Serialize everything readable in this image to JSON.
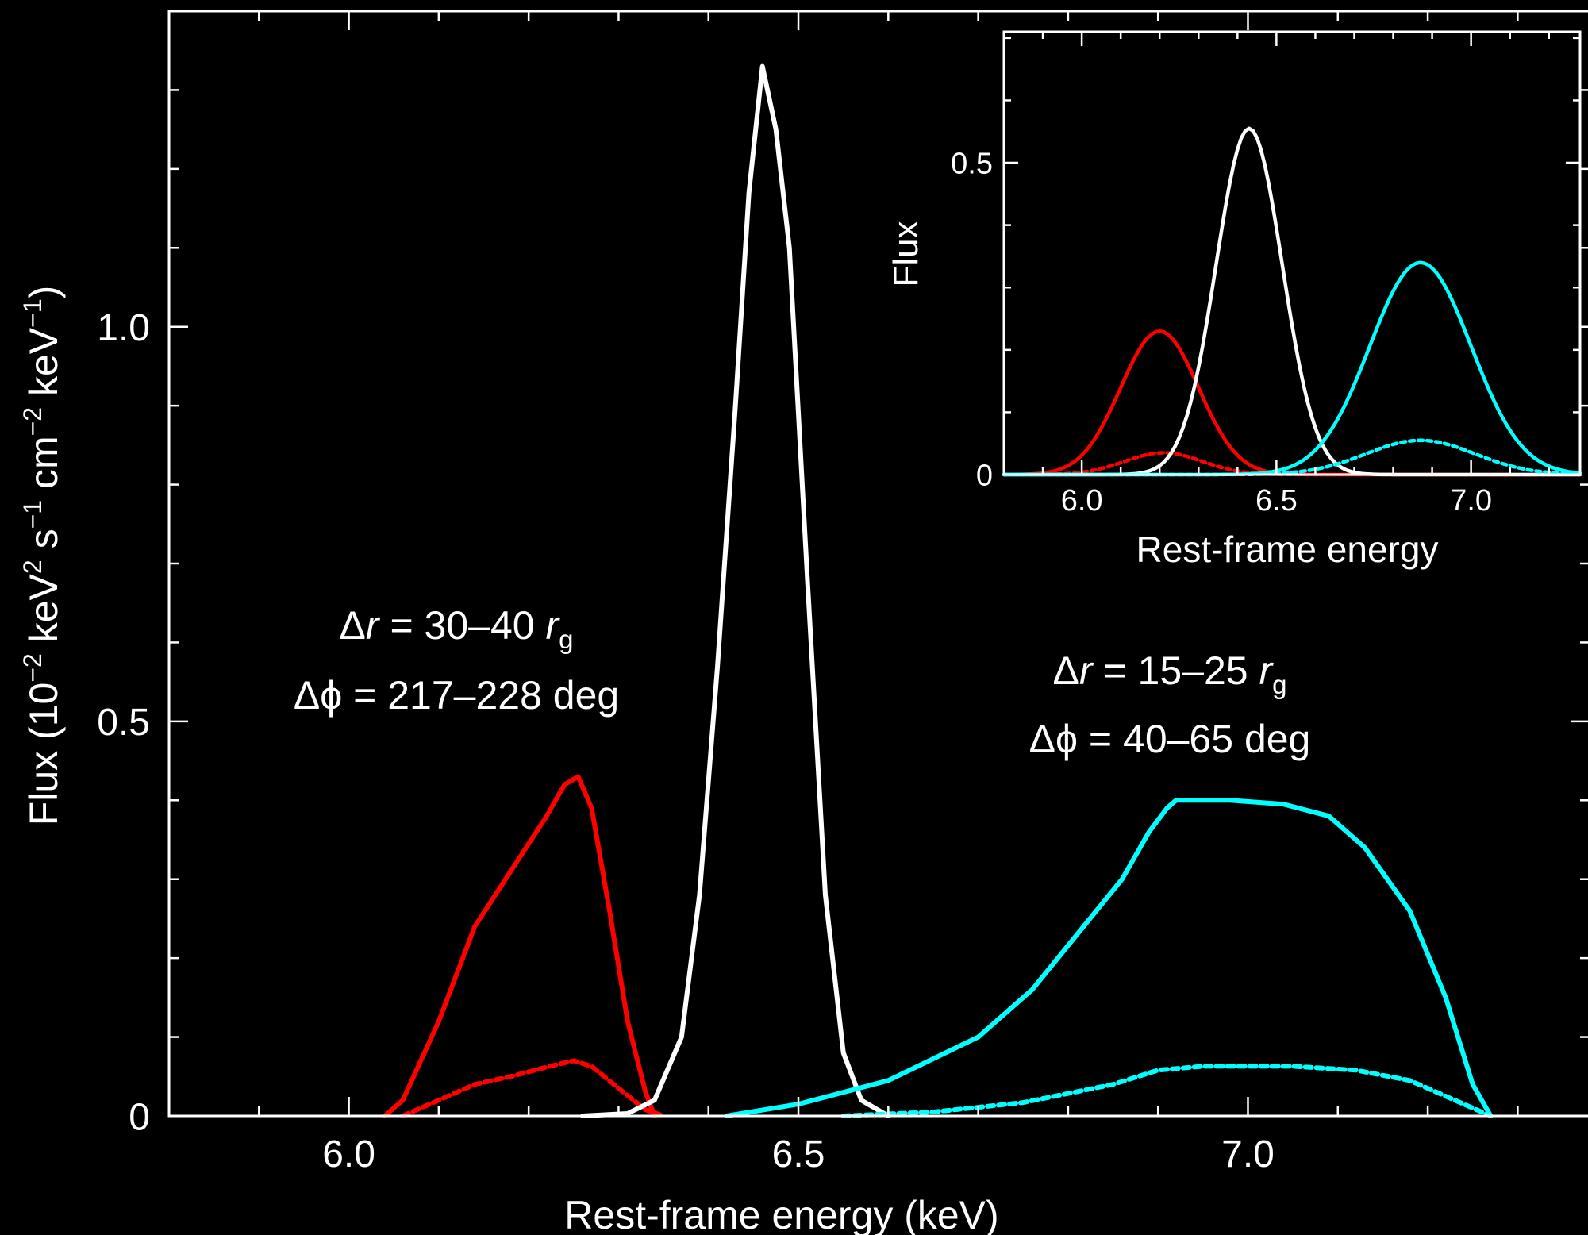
{
  "chart_data": [
    {
      "type": "line",
      "xlabel": "Rest-frame energy (keV)",
      "ylabel_parts": [
        "Flux (10",
        "−2",
        " keV",
        "2",
        " s",
        "−1",
        " cm",
        "−2",
        " keV",
        "−1",
        ")"
      ],
      "xlim": [
        5.8,
        7.38
      ],
      "ylim": [
        0,
        1.4
      ],
      "xticks": [
        6.0,
        6.5,
        7.0
      ],
      "xtick_labels": [
        "6.0",
        "6.5",
        "7.0"
      ],
      "yticks": [
        0,
        0.5,
        1.0
      ],
      "ytick_labels": [
        "0",
        "0.5",
        "1.0"
      ],
      "annotations": [
        {
          "delta": "Δ",
          "var": "r",
          "rest": " = 30–40 ",
          "unit": "r",
          "sub": "g"
        },
        {
          "delta": "Δ",
          "var": "ϕ",
          "rest": " = 217–228 deg"
        },
        {
          "delta": "Δ",
          "var": "r",
          "rest": " = 15–25 ",
          "unit": "r",
          "sub": "g"
        },
        {
          "delta": "Δ",
          "var": "ϕ",
          "rest": " = 40–65 deg"
        }
      ],
      "series": [
        {
          "color": "#ff0000",
          "style": "solid",
          "points": [
            [
              6.04,
              0
            ],
            [
              6.06,
              0.02
            ],
            [
              6.1,
              0.12
            ],
            [
              6.14,
              0.24
            ],
            [
              6.18,
              0.31
            ],
            [
              6.22,
              0.38
            ],
            [
              6.24,
              0.42
            ],
            [
              6.255,
              0.43
            ],
            [
              6.27,
              0.39
            ],
            [
              6.29,
              0.26
            ],
            [
              6.31,
              0.12
            ],
            [
              6.33,
              0.03
            ],
            [
              6.34,
              0
            ]
          ]
        },
        {
          "color": "#ff0000",
          "style": "dotted",
          "points": [
            [
              6.06,
              0
            ],
            [
              6.1,
              0.02
            ],
            [
              6.14,
              0.04
            ],
            [
              6.18,
              0.05
            ],
            [
              6.22,
              0.062
            ],
            [
              6.25,
              0.07
            ],
            [
              6.27,
              0.063
            ],
            [
              6.3,
              0.035
            ],
            [
              6.33,
              0.008
            ],
            [
              6.35,
              0
            ]
          ]
        },
        {
          "color": "#ffffff",
          "style": "solid",
          "points": [
            [
              6.26,
              0
            ],
            [
              6.31,
              0.003
            ],
            [
              6.34,
              0.02
            ],
            [
              6.37,
              0.1
            ],
            [
              6.39,
              0.28
            ],
            [
              6.41,
              0.57
            ],
            [
              6.43,
              0.9
            ],
            [
              6.445,
              1.17
            ],
            [
              6.46,
              1.33
            ],
            [
              6.475,
              1.25
            ],
            [
              6.49,
              1.1
            ],
            [
              6.51,
              0.68
            ],
            [
              6.53,
              0.28
            ],
            [
              6.55,
              0.08
            ],
            [
              6.57,
              0.02
            ],
            [
              6.6,
              0
            ]
          ]
        },
        {
          "color": "#00ffff",
          "style": "solid",
          "points": [
            [
              6.42,
              0
            ],
            [
              6.5,
              0.015
            ],
            [
              6.6,
              0.045
            ],
            [
              6.7,
              0.1
            ],
            [
              6.76,
              0.16
            ],
            [
              6.81,
              0.23
            ],
            [
              6.86,
              0.3
            ],
            [
              6.89,
              0.36
            ],
            [
              6.91,
              0.39
            ],
            [
              6.92,
              0.4
            ],
            [
              6.98,
              0.4
            ],
            [
              7.04,
              0.395
            ],
            [
              7.09,
              0.38
            ],
            [
              7.13,
              0.34
            ],
            [
              7.18,
              0.26
            ],
            [
              7.22,
              0.15
            ],
            [
              7.25,
              0.04
            ],
            [
              7.27,
              0
            ]
          ]
        },
        {
          "color": "#00ffff",
          "style": "dotted",
          "points": [
            [
              6.55,
              0
            ],
            [
              6.65,
              0.005
            ],
            [
              6.75,
              0.017
            ],
            [
              6.85,
              0.04
            ],
            [
              6.9,
              0.058
            ],
            [
              6.95,
              0.063
            ],
            [
              7.05,
              0.063
            ],
            [
              7.12,
              0.058
            ],
            [
              7.18,
              0.045
            ],
            [
              7.23,
              0.02
            ],
            [
              7.27,
              0
            ]
          ]
        }
      ]
    },
    {
      "type": "line",
      "inset": true,
      "xlabel": "Rest-frame energy",
      "ylabel": "Flux",
      "xlim": [
        5.8,
        7.28
      ],
      "ylim": [
        0,
        0.71
      ],
      "xticks": [
        6.0,
        6.5,
        7.0
      ],
      "xtick_labels": [
        "6.0",
        "6.5",
        "7.0"
      ],
      "yticks": [
        0,
        0.5
      ],
      "ytick_labels": [
        "0",
        "0.5"
      ],
      "series": [
        {
          "color": "#ff0000",
          "style": "solid",
          "gauss": {
            "amp": 0.23,
            "mu": 6.2,
            "sigma": 0.1
          }
        },
        {
          "color": "#ff0000",
          "style": "dotted",
          "gauss": {
            "amp": 0.035,
            "mu": 6.21,
            "sigma": 0.1
          }
        },
        {
          "color": "#ffffff",
          "style": "solid",
          "gauss": {
            "amp": 0.555,
            "mu": 6.43,
            "sigma": 0.085
          }
        },
        {
          "color": "#00ffff",
          "style": "solid",
          "gauss": {
            "amp": 0.34,
            "mu": 6.87,
            "sigma": 0.13
          }
        },
        {
          "color": "#00ffff",
          "style": "dotted",
          "gauss": {
            "amp": 0.055,
            "mu": 6.87,
            "sigma": 0.14
          }
        }
      ]
    }
  ]
}
